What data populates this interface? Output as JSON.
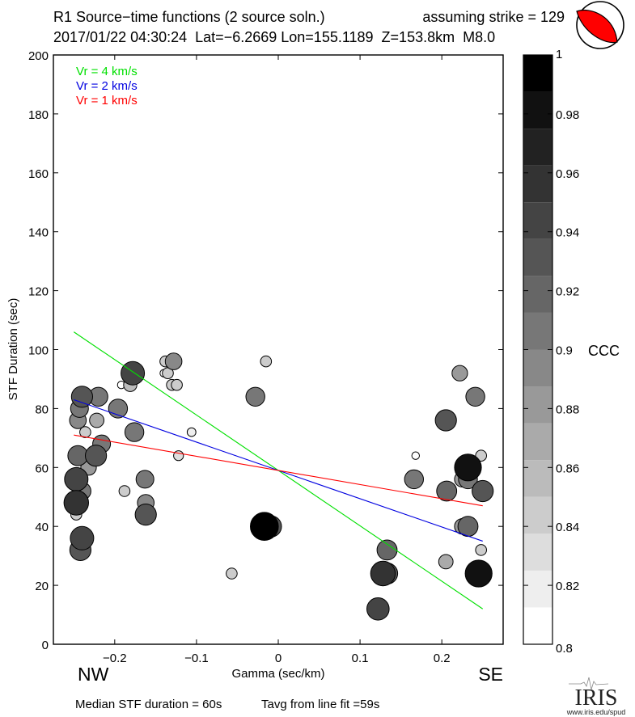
{
  "header": {
    "title": "R1 Source−time functions (2 source soln.)",
    "strike": "assuming strike = 129",
    "event": "2017/01/22 04:30:24  Lat=−6.2669 Lon=155.1189  Z=153.8km  M8.0",
    "beachball_icon": "focal-mechanism-beachball"
  },
  "footer": {
    "median": "Median STF duration = 60s",
    "tavg": "Tavg from line fit =59s",
    "nw": "NW",
    "se": "SE",
    "logo_text": "IRIS",
    "logo_url": "www.iris.edu/spud"
  },
  "chart_data": {
    "type": "scatter",
    "title": "R1 Source−time functions (2 source soln.)",
    "xlabel": "Gamma (sec/km)",
    "ylabel": "STF Duration (sec)",
    "xlim": [
      -0.275,
      0.275
    ],
    "ylim": [
      0,
      200
    ],
    "xticks": [
      -0.2,
      -0.1,
      0,
      0.1,
      0.2
    ],
    "xtick_labels": [
      "−0.2",
      "−0.1",
      "0",
      "0.1",
      "0.2"
    ],
    "yticks": [
      0,
      20,
      40,
      60,
      80,
      100,
      120,
      140,
      160,
      180,
      200
    ],
    "ytick_labels": [
      "0",
      "20",
      "40",
      "60",
      "80",
      "100",
      "120",
      "140",
      "160",
      "180",
      "200"
    ],
    "grid": false,
    "legend": {
      "placement": "top-left",
      "entries": [
        {
          "label": "Vr = 4 km/s",
          "color": "#00e000"
        },
        {
          "label": "Vr = 2 km/s",
          "color": "#0000e0"
        },
        {
          "label": "Vr = 1 km/s",
          "color": "#ff0000"
        }
      ]
    },
    "lines": [
      {
        "name": "Vr = 4 km/s",
        "color": "#00e000",
        "x": [
          -0.25,
          0.25
        ],
        "y": [
          106,
          12
        ]
      },
      {
        "name": "Vr = 2 km/s",
        "color": "#0000e0",
        "x": [
          -0.25,
          0.25
        ],
        "y": [
          83,
          35
        ]
      },
      {
        "name": "Vr = 1 km/s",
        "color": "#ff0000",
        "x": [
          -0.25,
          0.25
        ],
        "y": [
          71,
          47
        ]
      }
    ],
    "colorbar": {
      "label": "CCC",
      "range": [
        0.8,
        1.0
      ],
      "ticks": [
        0.8,
        0.82,
        0.84,
        0.86,
        0.88,
        0.9,
        0.92,
        0.94,
        0.96,
        0.98,
        1
      ],
      "tick_labels": [
        "0.8",
        "0.82",
        "0.84",
        "0.86",
        "0.88",
        "0.9",
        "0.92",
        "0.94",
        "0.96",
        "0.98",
        "1"
      ],
      "bands": 16
    },
    "points": [
      {
        "x": -0.245,
        "y": 76,
        "ccc": 0.89
      },
      {
        "x": -0.243,
        "y": 80,
        "ccc": 0.9
      },
      {
        "x": -0.24,
        "y": 84,
        "ccc": 0.93
      },
      {
        "x": -0.236,
        "y": 72,
        "ccc": 0.84
      },
      {
        "x": -0.22,
        "y": 84,
        "ccc": 0.91
      },
      {
        "x": -0.222,
        "y": 76,
        "ccc": 0.87
      },
      {
        "x": -0.196,
        "y": 80,
        "ccc": 0.91
      },
      {
        "x": -0.176,
        "y": 72,
        "ccc": 0.91
      },
      {
        "x": -0.192,
        "y": 88,
        "ccc": 0.81
      },
      {
        "x": -0.181,
        "y": 88,
        "ccc": 0.86
      },
      {
        "x": -0.178,
        "y": 92,
        "ccc": 0.95
      },
      {
        "x": -0.138,
        "y": 96,
        "ccc": 0.84
      },
      {
        "x": -0.128,
        "y": 96,
        "ccc": 0.89
      },
      {
        "x": -0.14,
        "y": 92,
        "ccc": 0.81
      },
      {
        "x": -0.135,
        "y": 92,
        "ccc": 0.84
      },
      {
        "x": -0.13,
        "y": 88,
        "ccc": 0.84
      },
      {
        "x": -0.124,
        "y": 88,
        "ccc": 0.84
      },
      {
        "x": -0.015,
        "y": 96,
        "ccc": 0.84
      },
      {
        "x": -0.028,
        "y": 84,
        "ccc": 0.91
      },
      {
        "x": -0.106,
        "y": 72,
        "ccc": 0.82
      },
      {
        "x": -0.122,
        "y": 64,
        "ccc": 0.83
      },
      {
        "x": -0.245,
        "y": 64,
        "ccc": 0.92
      },
      {
        "x": -0.232,
        "y": 60,
        "ccc": 0.88
      },
      {
        "x": -0.223,
        "y": 64,
        "ccc": 0.93
      },
      {
        "x": -0.216,
        "y": 68,
        "ccc": 0.9
      },
      {
        "x": -0.232,
        "y": 64,
        "ccc": 0.84
      },
      {
        "x": -0.247,
        "y": 56,
        "ccc": 0.95
      },
      {
        "x": -0.24,
        "y": 52,
        "ccc": 0.9
      },
      {
        "x": -0.247,
        "y": 44,
        "ccc": 0.84
      },
      {
        "x": -0.247,
        "y": 48,
        "ccc": 0.96
      },
      {
        "x": -0.24,
        "y": 52,
        "ccc": 0.88
      },
      {
        "x": -0.188,
        "y": 52,
        "ccc": 0.84
      },
      {
        "x": -0.163,
        "y": 56,
        "ccc": 0.9
      },
      {
        "x": -0.162,
        "y": 48,
        "ccc": 0.89
      },
      {
        "x": -0.165,
        "y": 48,
        "ccc": 0.8
      },
      {
        "x": -0.162,
        "y": 44,
        "ccc": 0.93
      },
      {
        "x": -0.162,
        "y": 44,
        "ccc": 0.85
      },
      {
        "x": -0.24,
        "y": 36,
        "ccc": 0.95
      },
      {
        "x": -0.242,
        "y": 32,
        "ccc": 0.93
      },
      {
        "x": -0.057,
        "y": 24,
        "ccc": 0.84
      },
      {
        "x": -0.017,
        "y": 40,
        "ccc": 0.99
      },
      {
        "x": -0.009,
        "y": 40,
        "ccc": 0.93
      },
      {
        "x": 0.168,
        "y": 64,
        "ccc": 0.81
      },
      {
        "x": 0.222,
        "y": 92,
        "ccc": 0.88
      },
      {
        "x": 0.241,
        "y": 84,
        "ccc": 0.91
      },
      {
        "x": 0.205,
        "y": 76,
        "ccc": 0.93
      },
      {
        "x": 0.166,
        "y": 56,
        "ccc": 0.91
      },
      {
        "x": 0.206,
        "y": 52,
        "ccc": 0.92
      },
      {
        "x": 0.232,
        "y": 60,
        "ccc": 0.98
      },
      {
        "x": 0.248,
        "y": 64,
        "ccc": 0.84
      },
      {
        "x": 0.225,
        "y": 56,
        "ccc": 0.88
      },
      {
        "x": 0.232,
        "y": 56,
        "ccc": 0.91
      },
      {
        "x": 0.25,
        "y": 52,
        "ccc": 0.93
      },
      {
        "x": 0.225,
        "y": 40,
        "ccc": 0.88
      },
      {
        "x": 0.232,
        "y": 40,
        "ccc": 0.92
      },
      {
        "x": 0.248,
        "y": 32,
        "ccc": 0.84
      },
      {
        "x": 0.205,
        "y": 28,
        "ccc": 0.87
      },
      {
        "x": 0.245,
        "y": 24,
        "ccc": 0.98
      },
      {
        "x": 0.133,
        "y": 32,
        "ccc": 0.92
      },
      {
        "x": 0.128,
        "y": 24,
        "ccc": 0.96
      },
      {
        "x": 0.133,
        "y": 24,
        "ccc": 0.93
      },
      {
        "x": 0.122,
        "y": 12,
        "ccc": 0.94
      }
    ]
  }
}
